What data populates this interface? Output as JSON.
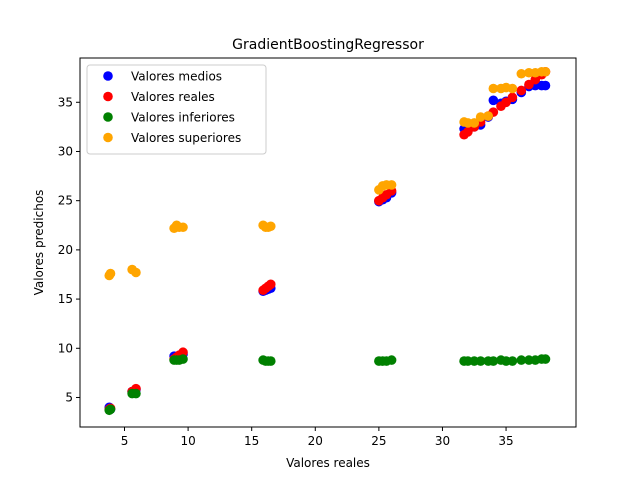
{
  "chart_data": {
    "type": "scatter",
    "title": "GradientBoostingRegressor",
    "xlabel": "Valores reales",
    "ylabel": "Valores predichos",
    "xlim": [
      1.5,
      40.5
    ],
    "ylim": [
      2.0,
      39.5
    ],
    "xticks": [
      5,
      10,
      15,
      20,
      25,
      30,
      35
    ],
    "yticks": [
      5,
      10,
      15,
      20,
      25,
      30,
      35
    ],
    "grid": false,
    "legend_position": "top-left",
    "x": [
      3.8,
      3.9,
      5.6,
      5.9,
      8.9,
      9.1,
      9.3,
      9.6,
      15.9,
      16.1,
      16.3,
      16.5,
      25.0,
      25.3,
      25.6,
      26.0,
      31.7,
      32.0,
      32.5,
      33.0,
      33.6,
      34.0,
      34.6,
      35.0,
      35.5,
      36.2,
      36.8,
      37.3,
      37.8,
      38.1
    ],
    "series": [
      {
        "name": "Valores medios",
        "color": "#0000ff",
        "values": [
          4.0,
          3.8,
          5.6,
          5.8,
          9.2,
          9.0,
          9.2,
          9.4,
          15.8,
          15.9,
          16.0,
          16.1,
          24.9,
          25.1,
          25.3,
          25.8,
          32.3,
          32.4,
          32.5,
          32.7,
          33.5,
          35.2,
          34.9,
          35.1,
          35.3,
          36.0,
          36.6,
          36.7,
          36.7,
          36.7
        ]
      },
      {
        "name": "Valores reales",
        "color": "#ff0000",
        "values": [
          3.8,
          3.9,
          5.6,
          5.9,
          8.9,
          9.1,
          9.3,
          9.6,
          15.9,
          16.1,
          16.3,
          16.5,
          25.0,
          25.3,
          25.6,
          26.0,
          31.7,
          32.0,
          32.5,
          33.0,
          33.6,
          34.0,
          34.6,
          35.0,
          35.5,
          36.2,
          36.8,
          37.3,
          37.8,
          38.1
        ]
      },
      {
        "name": "Valores inferiores",
        "color": "#008000",
        "values": [
          3.7,
          3.8,
          5.4,
          5.4,
          8.8,
          8.8,
          8.8,
          8.9,
          8.8,
          8.7,
          8.7,
          8.7,
          8.7,
          8.7,
          8.7,
          8.8,
          8.7,
          8.7,
          8.7,
          8.7,
          8.7,
          8.7,
          8.8,
          8.7,
          8.7,
          8.8,
          8.8,
          8.8,
          8.9,
          8.9
        ]
      },
      {
        "name": "Valores superiores",
        "color": "#ffa500",
        "values": [
          17.4,
          17.6,
          18.0,
          17.7,
          22.2,
          22.5,
          22.3,
          22.3,
          22.5,
          22.3,
          22.3,
          22.4,
          26.1,
          26.5,
          26.6,
          26.6,
          33.0,
          32.9,
          32.9,
          33.5,
          33.6,
          36.4,
          36.4,
          36.5,
          36.4,
          37.9,
          38.0,
          38.0,
          38.1,
          38.1
        ]
      }
    ]
  }
}
